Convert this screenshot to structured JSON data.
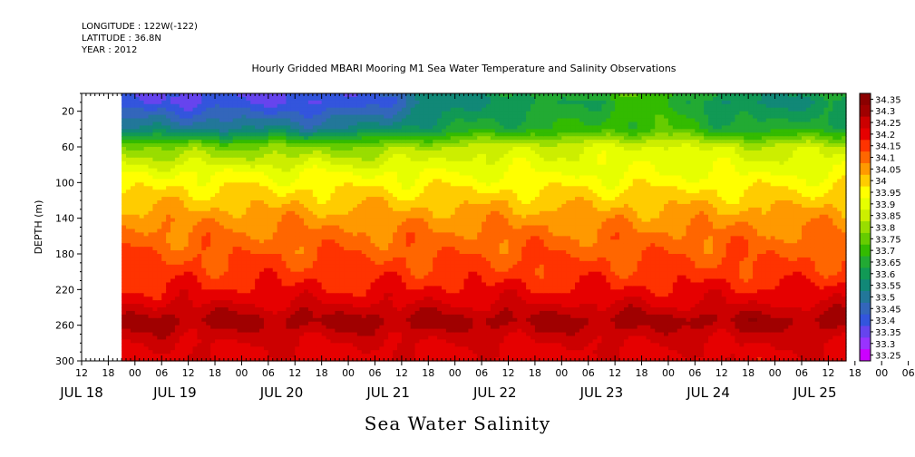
{
  "header": {
    "longitude": "LONGITUDE : 122W(-122)",
    "latitude": "LATITUDE : 36.8N",
    "year": "YEAR : 2012"
  },
  "chart_data": {
    "type": "heatmap",
    "title": "Hourly Gridded MBARI Mooring M1 Sea Water Temperature and Salinity Observations",
    "bottom_title": "Sea Water Salinity",
    "ylabel": "DEPTH (m)",
    "y_range": [
      0,
      300
    ],
    "y_inverted": true,
    "y_ticks": [
      20,
      60,
      100,
      140,
      180,
      220,
      260,
      300
    ],
    "x_range_hours": [
      0,
      172
    ],
    "data_start_hour": 9,
    "x_hour_ticks": [
      "12",
      "18",
      "00",
      "06",
      "12",
      "18",
      "00",
      "06",
      "12",
      "18",
      "00",
      "06",
      "12",
      "18",
      "00",
      "06",
      "12",
      "18",
      "00",
      "06",
      "12",
      "18",
      "00",
      "06",
      "12",
      "18",
      "00",
      "06",
      "12",
      "18",
      "00",
      "06",
      "12"
    ],
    "x_day_labels": [
      "JUL 18",
      "JUL 19",
      "JUL 20",
      "JUL 21",
      "JUL 22",
      "JUL 23",
      "JUL 24",
      "JUL 25"
    ],
    "x_day_label_hours": [
      0,
      21,
      45,
      69,
      93,
      117,
      141,
      165
    ],
    "colorbar": {
      "levels": [
        "34.35",
        "34.3",
        "34.25",
        "34.2",
        "34.15",
        "34.1",
        "34.05",
        "34",
        "33.95",
        "33.9",
        "33.85",
        "33.8",
        "33.75",
        "33.7",
        "33.65",
        "33.6",
        "33.55",
        "33.5",
        "33.45",
        "33.4",
        "33.35",
        "33.3",
        "33.25"
      ],
      "colors": [
        "#8b0000",
        "#a00000",
        "#cc0000",
        "#e60000",
        "#ff3300",
        "#ff6600",
        "#ff9900",
        "#ffcc00",
        "#ffff00",
        "#e6ff00",
        "#ccee00",
        "#99dd00",
        "#66cc00",
        "#33bb00",
        "#22aa33",
        "#119955",
        "#118877",
        "#227799",
        "#3366bb",
        "#3355dd",
        "#6644ee",
        "#9933ff",
        "#cc00ff"
      ]
    },
    "salinity_profile": [
      {
        "depth": 10,
        "value": 33.4
      },
      {
        "depth": 40,
        "value": 33.55
      },
      {
        "depth": 60,
        "value": 33.8
      },
      {
        "depth": 90,
        "value": 33.95
      },
      {
        "depth": 120,
        "value": 34.03
      },
      {
        "depth": 150,
        "value": 34.1
      },
      {
        "depth": 200,
        "value": 34.17
      },
      {
        "depth": 230,
        "value": 34.23
      },
      {
        "depth": 255,
        "value": 34.32
      },
      {
        "depth": 280,
        "value": 34.25
      },
      {
        "depth": 300,
        "value": 34.23
      }
    ],
    "surface_trend": [
      {
        "hour": 9,
        "value": 33.4
      },
      {
        "hour": 60,
        "value": 33.4
      },
      {
        "hour": 85,
        "value": 33.6
      },
      {
        "hour": 130,
        "value": 33.75
      },
      {
        "hour": 150,
        "value": 33.6
      },
      {
        "hour": 172,
        "value": 33.65
      }
    ]
  }
}
